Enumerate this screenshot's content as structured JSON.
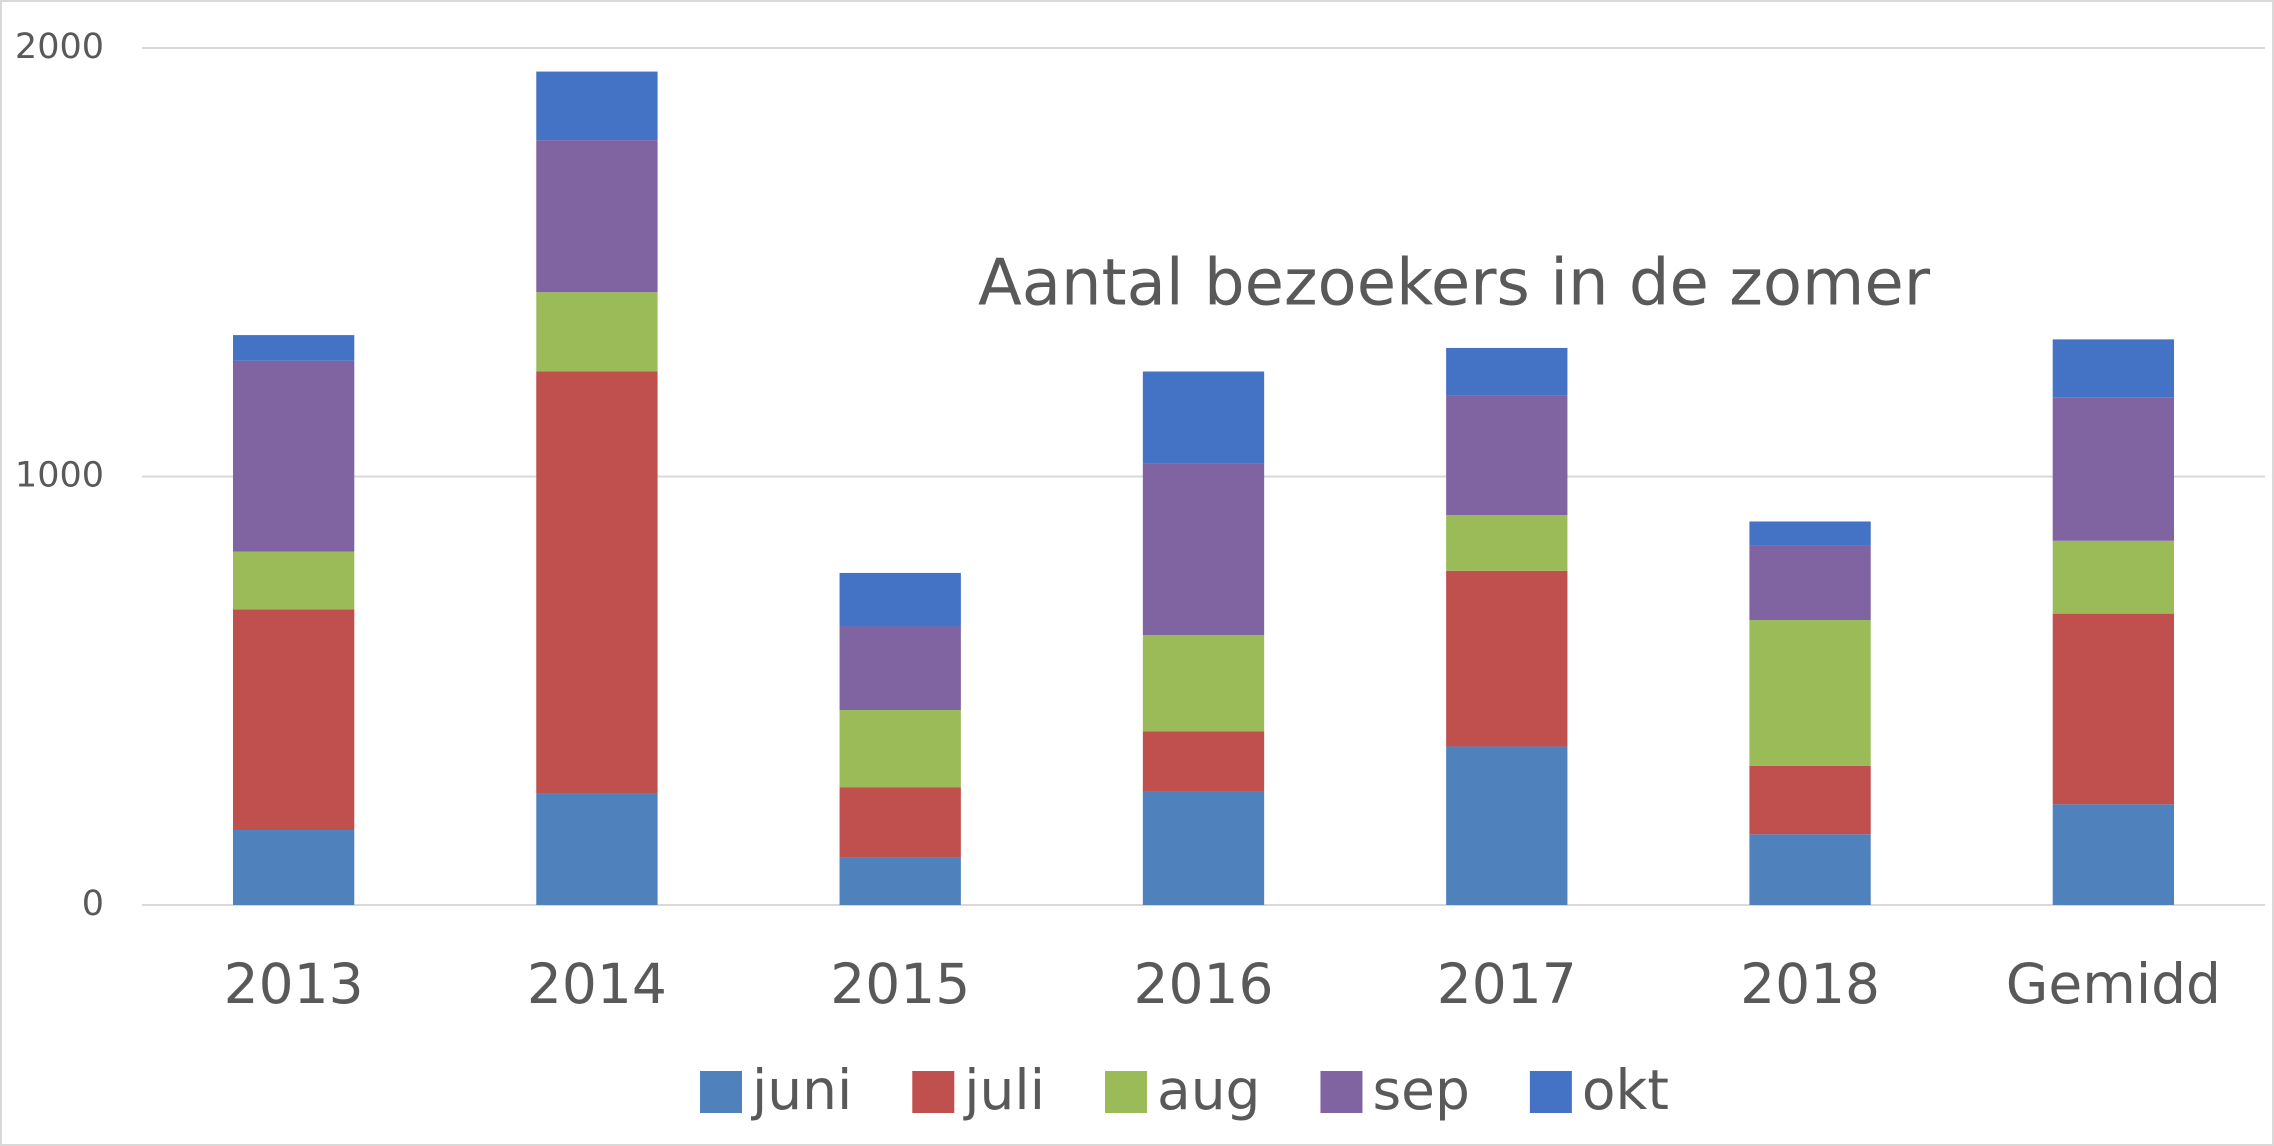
{
  "chart_data": {
    "type": "stacked_bar",
    "title": "Aantal bezoekers in de zomer",
    "categories": [
      "2013",
      "2014",
      "2015",
      "2016",
      "2017",
      "2018",
      "Gemidd"
    ],
    "series": [
      {
        "name": "juni",
        "color": "#4f81bd",
        "values": [
          175,
          260,
          110,
          265,
          370,
          165,
          235
        ]
      },
      {
        "name": "juli",
        "color": "#c0504d",
        "values": [
          515,
          985,
          165,
          140,
          410,
          160,
          445
        ]
      },
      {
        "name": "aug",
        "color": "#9bbb59",
        "values": [
          135,
          185,
          180,
          225,
          130,
          340,
          170
        ]
      },
      {
        "name": "sep",
        "color": "#8064a2",
        "values": [
          445,
          355,
          195,
          400,
          280,
          175,
          335
        ]
      },
      {
        "name": "okt",
        "color": "#4472c4",
        "values": [
          60,
          160,
          125,
          215,
          110,
          55,
          135
        ]
      }
    ],
    "ylim": [
      0,
      2000
    ],
    "yticks": [
      0,
      1000,
      2000
    ],
    "grid": true,
    "legend": "bottom"
  }
}
